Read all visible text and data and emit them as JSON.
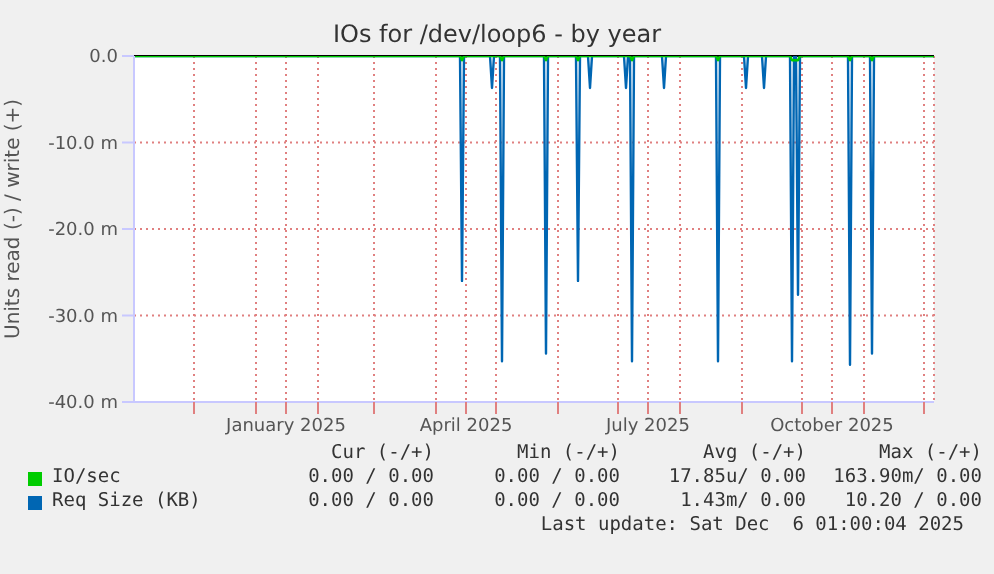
{
  "chart_data": {
    "type": "line",
    "title": "IOs for /dev/loop6 - by year",
    "ylabel": "Units read (-) / write (+)",
    "xlim": [
      "2024-11-01",
      "2025-12-06"
    ],
    "xticks": [
      {
        "value": "2024-12-01",
        "label": null
      },
      {
        "value": "2025-01-01",
        "label": null
      },
      {
        "value": "2025-01-16",
        "label": "January 2025"
      },
      {
        "value": "2025-02-01",
        "label": null
      },
      {
        "value": "2025-03-01",
        "label": null
      },
      {
        "value": "2025-04-01",
        "label": null
      },
      {
        "value": "2025-04-16",
        "label": "April 2025"
      },
      {
        "value": "2025-05-01",
        "label": null
      },
      {
        "value": "2025-06-01",
        "label": null
      },
      {
        "value": "2025-07-01",
        "label": null
      },
      {
        "value": "2025-07-16",
        "label": "July 2025"
      },
      {
        "value": "2025-08-01",
        "label": null
      },
      {
        "value": "2025-09-01",
        "label": null
      },
      {
        "value": "2025-10-01",
        "label": null
      },
      {
        "value": "2025-10-16",
        "label": "October 2025"
      },
      {
        "value": "2025-11-01",
        "label": null
      },
      {
        "value": "2025-12-01",
        "label": null
      }
    ],
    "ylim": [
      -40,
      0
    ],
    "yticks": [
      {
        "value": -40,
        "label": "-40.0 m"
      },
      {
        "value": -30,
        "label": "-30.0 m"
      },
      {
        "value": -20,
        "label": "-20.0 m"
      },
      {
        "value": -10,
        "label": "-10.0 m"
      },
      {
        "value": 0,
        "label": "0.0"
      }
    ],
    "grid": true,
    "legend": "bottom",
    "marker": "none",
    "line_style": "solid",
    "series": [
      {
        "name": "IO/sec",
        "color": "#00cc00",
        "x": [
          "2024-11-01",
          "2025-04-13",
          "2025-04-14",
          "2025-04-15",
          "2025-05-03",
          "2025-05-04",
          "2025-05-05",
          "2025-05-25",
          "2025-05-26",
          "2025-05-27",
          "2025-06-10",
          "2025-06-11",
          "2025-06-12",
          "2025-07-07",
          "2025-07-08",
          "2025-07-09",
          "2025-08-19",
          "2025-08-20",
          "2025-08-21",
          "2025-09-25",
          "2025-09-26",
          "2025-09-29",
          "2025-09-30",
          "2025-10-24",
          "2025-10-25",
          "2025-10-26",
          "2025-11-04",
          "2025-11-05",
          "2025-11-06",
          "2025-12-06"
        ],
        "values": [
          0,
          0,
          -0.5,
          0,
          0,
          -0.5,
          0,
          0,
          -0.5,
          0,
          0,
          -0.5,
          0,
          0,
          -0.5,
          0,
          0,
          -0.5,
          0,
          0,
          -0.5,
          -0.5,
          0,
          0,
          -0.5,
          0,
          0,
          -0.5,
          0,
          0
        ]
      },
      {
        "name": "Req Size (KB)",
        "color": "#0066b3",
        "x": [
          "2024-11-01",
          "2025-04-13",
          "2025-04-14",
          "2025-04-15",
          "2025-04-28",
          "2025-04-29",
          "2025-04-30",
          "2025-05-03",
          "2025-05-04",
          "2025-05-05",
          "2025-05-25",
          "2025-05-26",
          "2025-05-27",
          "2025-06-10",
          "2025-06-11",
          "2025-06-12",
          "2025-06-16",
          "2025-06-17",
          "2025-06-18",
          "2025-07-04",
          "2025-07-05",
          "2025-07-06",
          "2025-07-07",
          "2025-07-08",
          "2025-07-09",
          "2025-07-23",
          "2025-07-24",
          "2025-07-25",
          "2025-08-19",
          "2025-08-20",
          "2025-08-21",
          "2025-09-02",
          "2025-09-03",
          "2025-09-04",
          "2025-09-11",
          "2025-09-12",
          "2025-09-13",
          "2025-09-25",
          "2025-09-26",
          "2025-09-27",
          "2025-09-28",
          "2025-09-29",
          "2025-09-30",
          "2025-10-24",
          "2025-10-25",
          "2025-10-26",
          "2025-11-04",
          "2025-11-05",
          "2025-11-06",
          "2025-12-06"
        ],
        "values": [
          0,
          0,
          -26,
          0,
          0,
          -3.7,
          0,
          0,
          -35.3,
          0,
          0,
          -34.4,
          0,
          0,
          -26,
          0,
          0,
          -3.7,
          0,
          0,
          -3.7,
          0,
          0,
          -35.3,
          0,
          0,
          -3.7,
          0,
          0,
          -35.3,
          0,
          0,
          -3.7,
          0,
          0,
          -3.7,
          0,
          0,
          -35.3,
          0,
          0,
          -27.6,
          0,
          0,
          -35.7,
          0,
          0,
          -34.4,
          0,
          0
        ]
      }
    ],
    "annotations": [
      "Cur (-/+)",
      "Min (-/+)",
      "Avg (-/+)",
      "Max (-/+)",
      "0.00 / 0.00",
      "0.00 / 0.00",
      "17.85u/ 0.00",
      "163.90m/ 0.00",
      "0.00 / 0.00",
      "0.00 / 0.00",
      "1.43m/ 0.00",
      "10.20 / 0.00",
      "Last update: Sat Dec  6 01:00:04 2025"
    ]
  }
}
